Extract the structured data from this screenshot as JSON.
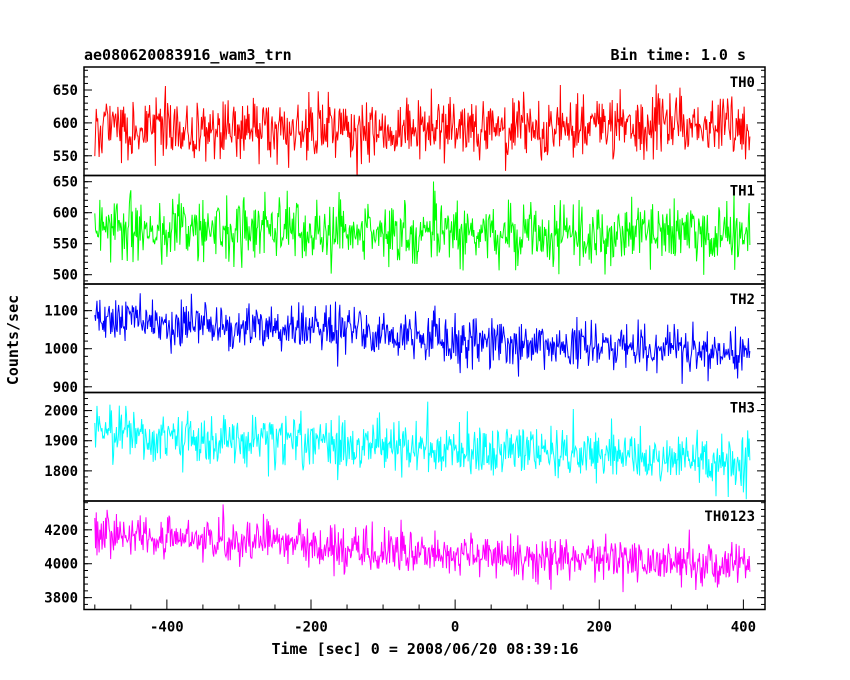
{
  "header": {
    "left": "ae080620083916_wam3_trn",
    "right": "Bin time: 1.0 s"
  },
  "chart_data": {
    "type": "line",
    "xlabel": "Time [sec] 0 = 2008/06/20 08:39:16",
    "ylabel": "Counts/sec",
    "xlim": [
      -515,
      430
    ],
    "xticks": [
      -400,
      -200,
      0,
      200,
      400
    ],
    "x_range": [
      -500,
      409
    ],
    "bin_time_s": 1.0,
    "grid": false,
    "panels": [
      {
        "label": "TH0",
        "color": "#ff0000",
        "ylim": [
          520,
          685
        ],
        "yticks": [
          550,
          600,
          650
        ],
        "trend": [
          [
            -500,
            590
          ],
          [
            -300,
            590
          ],
          [
            -100,
            588
          ],
          [
            100,
            592
          ],
          [
            409,
            598
          ]
        ],
        "noise_sd": 24
      },
      {
        "label": "TH1",
        "color": "#00ff00",
        "ylim": [
          485,
          660
        ],
        "yticks": [
          500,
          550,
          600,
          650
        ],
        "trend": [
          [
            -500,
            575
          ],
          [
            -300,
            572
          ],
          [
            0,
            568
          ],
          [
            200,
            566
          ],
          [
            409,
            562
          ]
        ],
        "noise_sd": 24
      },
      {
        "label": "TH2",
        "color": "#0000ff",
        "ylim": [
          885,
          1170
        ],
        "yticks": [
          900,
          1000,
          1100
        ],
        "trend": [
          [
            -500,
            1080
          ],
          [
            -300,
            1062
          ],
          [
            -100,
            1035
          ],
          [
            100,
            1012
          ],
          [
            300,
            998
          ],
          [
            409,
            985
          ]
        ],
        "noise_sd": 32
      },
      {
        "label": "TH3",
        "color": "#00ffff",
        "ylim": [
          1700,
          2060
        ],
        "yticks": [
          1800,
          1900,
          2000
        ],
        "trend": [
          [
            -500,
            1925
          ],
          [
            -300,
            1900
          ],
          [
            -100,
            1880
          ],
          [
            100,
            1860
          ],
          [
            300,
            1838
          ],
          [
            409,
            1825
          ]
        ],
        "noise_sd": 43
      },
      {
        "label": "TH0123",
        "color": "#ff00ff",
        "ylim": [
          3730,
          4370
        ],
        "yticks": [
          3800,
          4000,
          4200
        ],
        "trend": [
          [
            -500,
            4180
          ],
          [
            -300,
            4130
          ],
          [
            -100,
            4080
          ],
          [
            100,
            4040
          ],
          [
            300,
            4010
          ],
          [
            409,
            3990
          ]
        ],
        "noise_sd": 65
      }
    ]
  }
}
